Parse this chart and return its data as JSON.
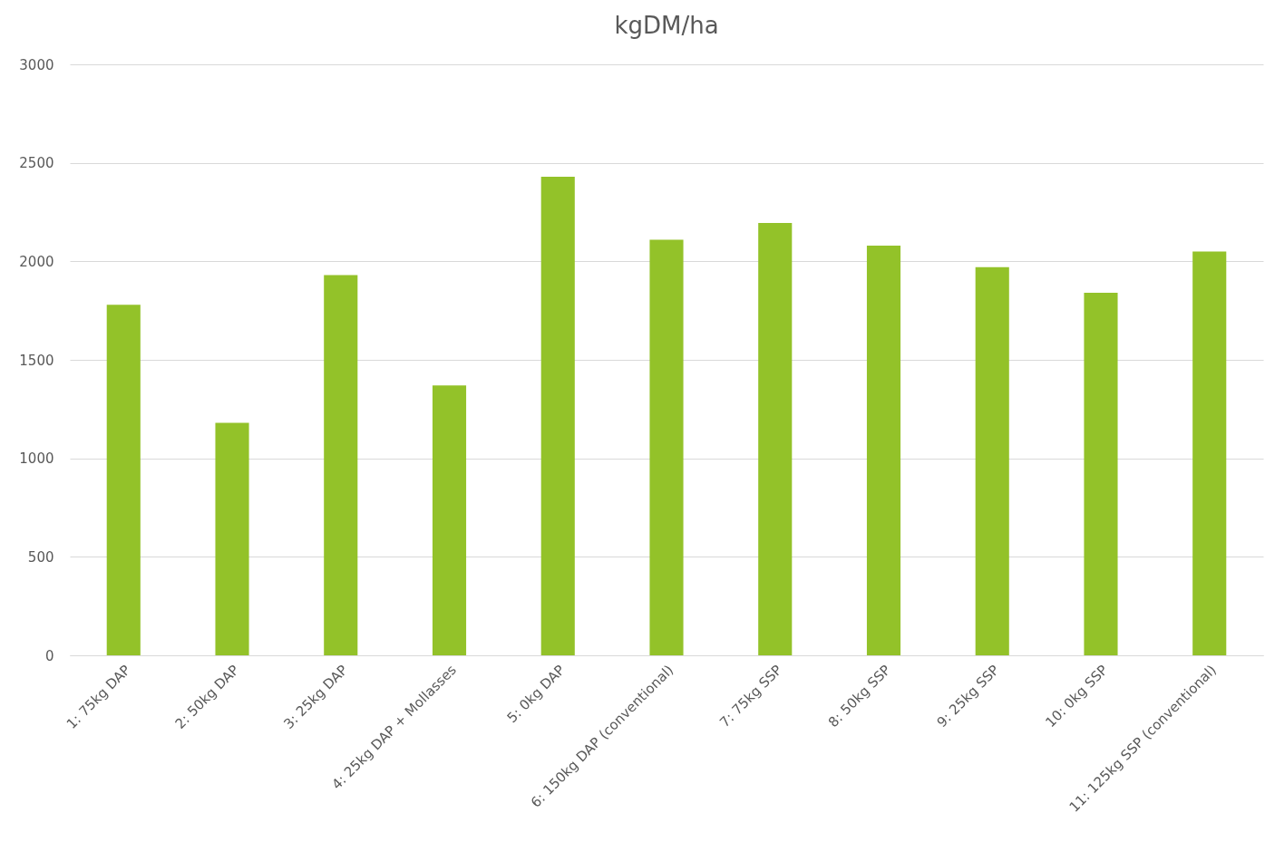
{
  "chart_data": {
    "type": "bar",
    "title": "kgDM/ha",
    "categories": [
      "1: 75kg DAP",
      "2: 50kg DAP",
      "3: 25kg DAP",
      "4: 25kg DAP + Mollasses",
      "5: 0kg DAP",
      "6: 150kg DAP (conventional)",
      "7: 75kg SSP",
      "8: 50kg SSP",
      "9: 25kg SSP",
      "10: 0kg SSP",
      "11: 125kg SSP (conventional)"
    ],
    "values": [
      1780,
      1180,
      1930,
      1370,
      2430,
      2110,
      2195,
      2080,
      1970,
      1840,
      2050
    ],
    "color": "#93c229",
    "ylim": [
      0,
      3000
    ],
    "yticks": [
      0,
      500,
      1000,
      1500,
      2000,
      2500,
      3000
    ],
    "grid": "y"
  }
}
